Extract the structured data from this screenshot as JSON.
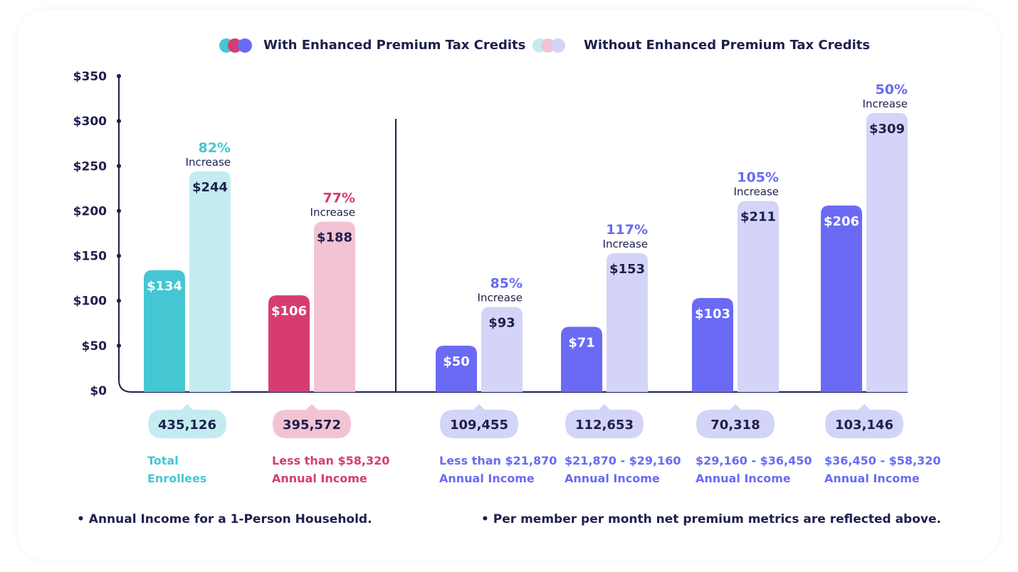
{
  "legend": {
    "with": "With Enhanced Premium Tax Credits",
    "without": "Without Enhanced Premium Tax Credits"
  },
  "notes": [
    "• Annual Income for a 1-Person Household.",
    "• Per member per month net premium metrics are reflected above."
  ],
  "colors": {
    "text": "#1d1f4e",
    "teal": "#45c6d3",
    "teal_light": "#c4ecf0",
    "pink": "#d63d6e",
    "pink_light": "#f2c4d3",
    "purple": "#6a6af5",
    "purple_light": "#d4d4f8"
  },
  "chart_data": {
    "type": "bar",
    "ylim": [
      0,
      350
    ],
    "yticks": [
      "$0",
      "$50",
      "$100",
      "$150",
      "$200",
      "$250",
      "$300",
      "$350"
    ],
    "increase_word": "Increase",
    "groups": [
      {
        "label": [
          "Total",
          "Enrollees"
        ],
        "enrollees": "435,126",
        "with": 134,
        "without": 244,
        "with_label": "$134",
        "without_label": "$244",
        "increase": "82%",
        "theme": "teal"
      },
      {
        "label": [
          "Less than $58,320",
          "Annual Income"
        ],
        "enrollees": "395,572",
        "with": 106,
        "without": 188,
        "with_label": "$106",
        "without_label": "$188",
        "increase": "77%",
        "theme": "pink"
      },
      {
        "label": [
          "Less than $21,870",
          "Annual Income"
        ],
        "enrollees": "109,455",
        "with": 50,
        "without": 93,
        "with_label": "$50",
        "without_label": "$93",
        "increase": "85%",
        "theme": "purple"
      },
      {
        "label": [
          "$21,870 - $29,160",
          "Annual Income"
        ],
        "enrollees": "112,653",
        "with": 71,
        "without": 153,
        "with_label": "$71",
        "without_label": "$153",
        "increase": "117%",
        "theme": "purple"
      },
      {
        "label": [
          "$29,160 - $36,450",
          "Annual Income"
        ],
        "enrollees": "70,318",
        "with": 103,
        "without": 211,
        "with_label": "$103",
        "without_label": "$211",
        "increase": "105%",
        "theme": "purple"
      },
      {
        "label": [
          "$36,450 - $58,320",
          "Annual Income"
        ],
        "enrollees": "103,146",
        "with": 206,
        "without": 309,
        "with_label": "$206",
        "without_label": "$309",
        "increase": "50%",
        "theme": "purple"
      }
    ]
  }
}
